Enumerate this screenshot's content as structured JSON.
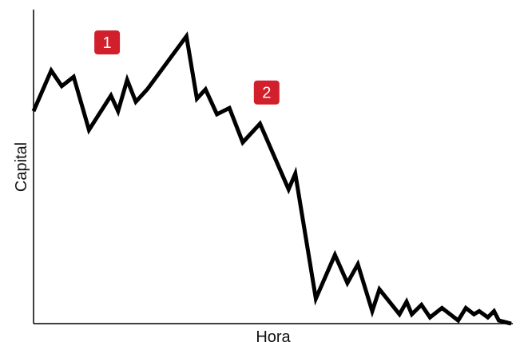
{
  "chart_data": {
    "type": "line",
    "xlabel": "Hora",
    "ylabel": "Capital",
    "grid": false,
    "legend": "none",
    "xlim": [
      0,
      100
    ],
    "ylim": [
      0,
      100
    ],
    "series": [
      {
        "color": "#000000",
        "x": [
          0,
          3.7,
          5.9,
          8.4,
          11.6,
          16.2,
          17.7,
          19.6,
          21.4,
          23.8,
          32.0,
          34.2,
          36.0,
          38.4,
          41.0,
          43.8,
          47.4,
          53.4,
          54.8,
          59.1,
          63.1,
          65.7,
          67.9,
          70.9,
          72.4,
          76.6,
          78.1,
          79.2,
          81.2,
          83.0,
          85.5,
          88.9,
          90.5,
          92.2,
          93.3,
          95.1,
          96.4,
          97.4,
          100
        ],
        "y": [
          68,
          81,
          76,
          79,
          62,
          73,
          68,
          78,
          71,
          75,
          92,
          72,
          75,
          67,
          69,
          58,
          64,
          43,
          48,
          8,
          22,
          13,
          19,
          4,
          11,
          3,
          7,
          3,
          6,
          2,
          5,
          1,
          5,
          3,
          4,
          2,
          4,
          1,
          0
        ]
      }
    ],
    "annotations": [
      {
        "label": "1",
        "color": "#d11f2b",
        "x": 15.4,
        "y": 90
      },
      {
        "label": "2",
        "color": "#d11f2b",
        "x": 48.8,
        "y": 74
      }
    ]
  }
}
